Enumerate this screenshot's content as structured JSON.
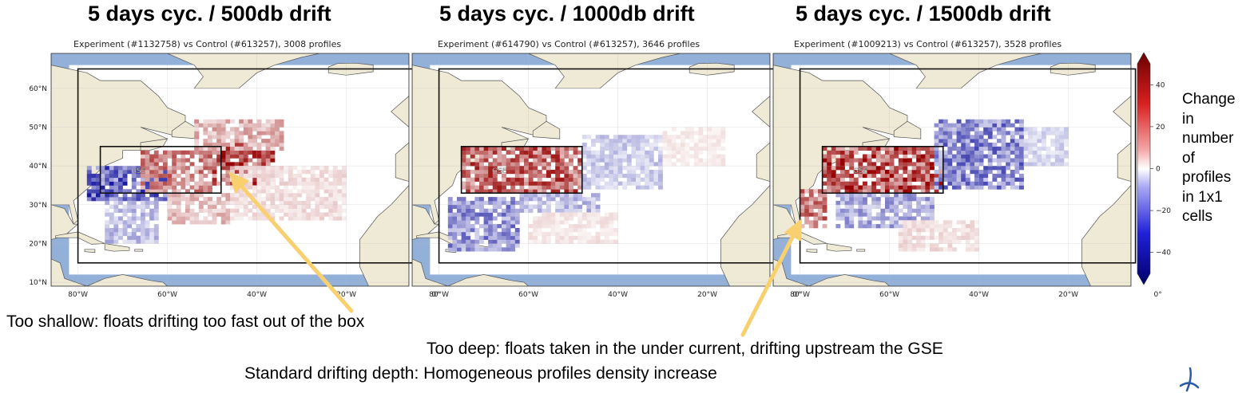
{
  "colors": {
    "ocean": "#93b0d9",
    "land": "#efead6",
    "coast": "#555555",
    "arrow": "#f8d070",
    "increase": "#c01a1a",
    "decrease": "#1a1ad0"
  },
  "notes": {
    "shallow": "Too shallow: floats drifting too fast out of the box",
    "deep": "Too deep: floats taken in the under current, drifting upstream the GSE",
    "standard": "Standard drifting depth: Homogeneous profiles density increase"
  },
  "colorbar": {
    "label_lines": [
      "Change",
      "in",
      "number",
      "of",
      "profiles",
      "in 1x1",
      "cells"
    ],
    "colormap": "seismic (blue-white-red)"
  },
  "chart_data": [
    {
      "type": "heatmap",
      "title": "5 days cyc. / 500db drift",
      "subtitle": "Experiment (#1132758) vs Control (#613257), 3008 profiles",
      "xlabel": "",
      "ylabel": "",
      "x_ticks": [
        "80°W",
        "60°W",
        "40°W",
        "20°W",
        "0°"
      ],
      "y_ticks": [
        "60°N",
        "50°N",
        "40°N",
        "30°N",
        "20°N",
        "10°N"
      ],
      "xlim": [
        -86,
        -6
      ],
      "ylim": [
        9,
        69
      ],
      "colorbar_ticks": [
        40,
        20,
        0,
        -20,
        -40
      ],
      "colorbar_range": [
        -50,
        50
      ],
      "regions": [
        {
          "name": "domain",
          "lon": [
            -80,
            -5
          ],
          "lat": [
            15,
            65
          ]
        },
        {
          "name": "GSE",
          "lon": [
            -75,
            -48
          ],
          "lat": [
            33,
            45
          ]
        }
      ],
      "annotation": "GSE",
      "cells": [
        {
          "lon": [
            -78,
            -60
          ],
          "lat": [
            31,
            40
          ],
          "value": -35
        },
        {
          "lon": [
            -74,
            -62
          ],
          "lat": [
            20,
            31
          ],
          "value": -15
        },
        {
          "lon": [
            -66,
            -50
          ],
          "lat": [
            33,
            44
          ],
          "value": 28
        },
        {
          "lon": [
            -50,
            -36
          ],
          "lat": [
            35,
            46
          ],
          "value": 40
        },
        {
          "lon": [
            -54,
            -34
          ],
          "lat": [
            44,
            52
          ],
          "value": 18
        },
        {
          "lon": [
            -60,
            -46
          ],
          "lat": [
            25,
            33
          ],
          "value": 15
        },
        {
          "lon": [
            -46,
            -20
          ],
          "lat": [
            26,
            40
          ],
          "value": 8
        }
      ]
    },
    {
      "type": "heatmap",
      "title": "5 days cyc. / 1000db drift",
      "subtitle": "Experiment (#614790) vs Control (#613257), 3646 profiles",
      "xlabel": "",
      "ylabel": "",
      "x_ticks": [
        "80°W",
        "60°W",
        "40°W",
        "20°W",
        "0°"
      ],
      "y_ticks": [],
      "xlim": [
        -86,
        -6
      ],
      "ylim": [
        9,
        69
      ],
      "regions": [
        {
          "name": "domain",
          "lon": [
            -80,
            -5
          ],
          "lat": [
            15,
            65
          ]
        },
        {
          "name": "GSE",
          "lon": [
            -75,
            -48
          ],
          "lat": [
            33,
            45
          ]
        }
      ],
      "annotation": "GSE",
      "cells": [
        {
          "lon": [
            -75,
            -48
          ],
          "lat": [
            33,
            45
          ],
          "value": 35
        },
        {
          "lon": [
            -78,
            -62
          ],
          "lat": [
            18,
            32
          ],
          "value": -25
        },
        {
          "lon": [
            -62,
            -44
          ],
          "lat": [
            28,
            33
          ],
          "value": -15
        },
        {
          "lon": [
            -48,
            -30
          ],
          "lat": [
            34,
            48
          ],
          "value": -12
        },
        {
          "lon": [
            -60,
            -40
          ],
          "lat": [
            20,
            28
          ],
          "value": 6
        },
        {
          "lon": [
            -30,
            -16
          ],
          "lat": [
            40,
            50
          ],
          "value": 5
        }
      ]
    },
    {
      "type": "heatmap",
      "title": "5 days cyc. / 1500db drift",
      "subtitle": "Experiment (#1009213) vs Control (#613257), 3528 profiles",
      "xlabel": "",
      "ylabel": "",
      "x_ticks": [
        "80°W",
        "60°W",
        "40°W",
        "20°W",
        "0°"
      ],
      "y_ticks": [],
      "xlim": [
        -86,
        -6
      ],
      "ylim": [
        9,
        69
      ],
      "regions": [
        {
          "name": "domain",
          "lon": [
            -80,
            -5
          ],
          "lat": [
            15,
            65
          ]
        },
        {
          "name": "GSE",
          "lon": [
            -75,
            -48
          ],
          "lat": [
            33,
            45
          ]
        }
      ],
      "annotation": "GSE",
      "cells": [
        {
          "lon": [
            -75,
            -48
          ],
          "lat": [
            33,
            45
          ],
          "value": 40
        },
        {
          "lon": [
            -80,
            -74
          ],
          "lat": [
            24,
            34
          ],
          "value": 30
        },
        {
          "lon": [
            -72,
            -50
          ],
          "lat": [
            24,
            33
          ],
          "value": -20
        },
        {
          "lon": [
            -50,
            -30
          ],
          "lat": [
            34,
            52
          ],
          "value": -28
        },
        {
          "lon": [
            -30,
            -20
          ],
          "lat": [
            40,
            50
          ],
          "value": -10
        },
        {
          "lon": [
            -58,
            -40
          ],
          "lat": [
            18,
            26
          ],
          "value": 8
        }
      ]
    }
  ]
}
